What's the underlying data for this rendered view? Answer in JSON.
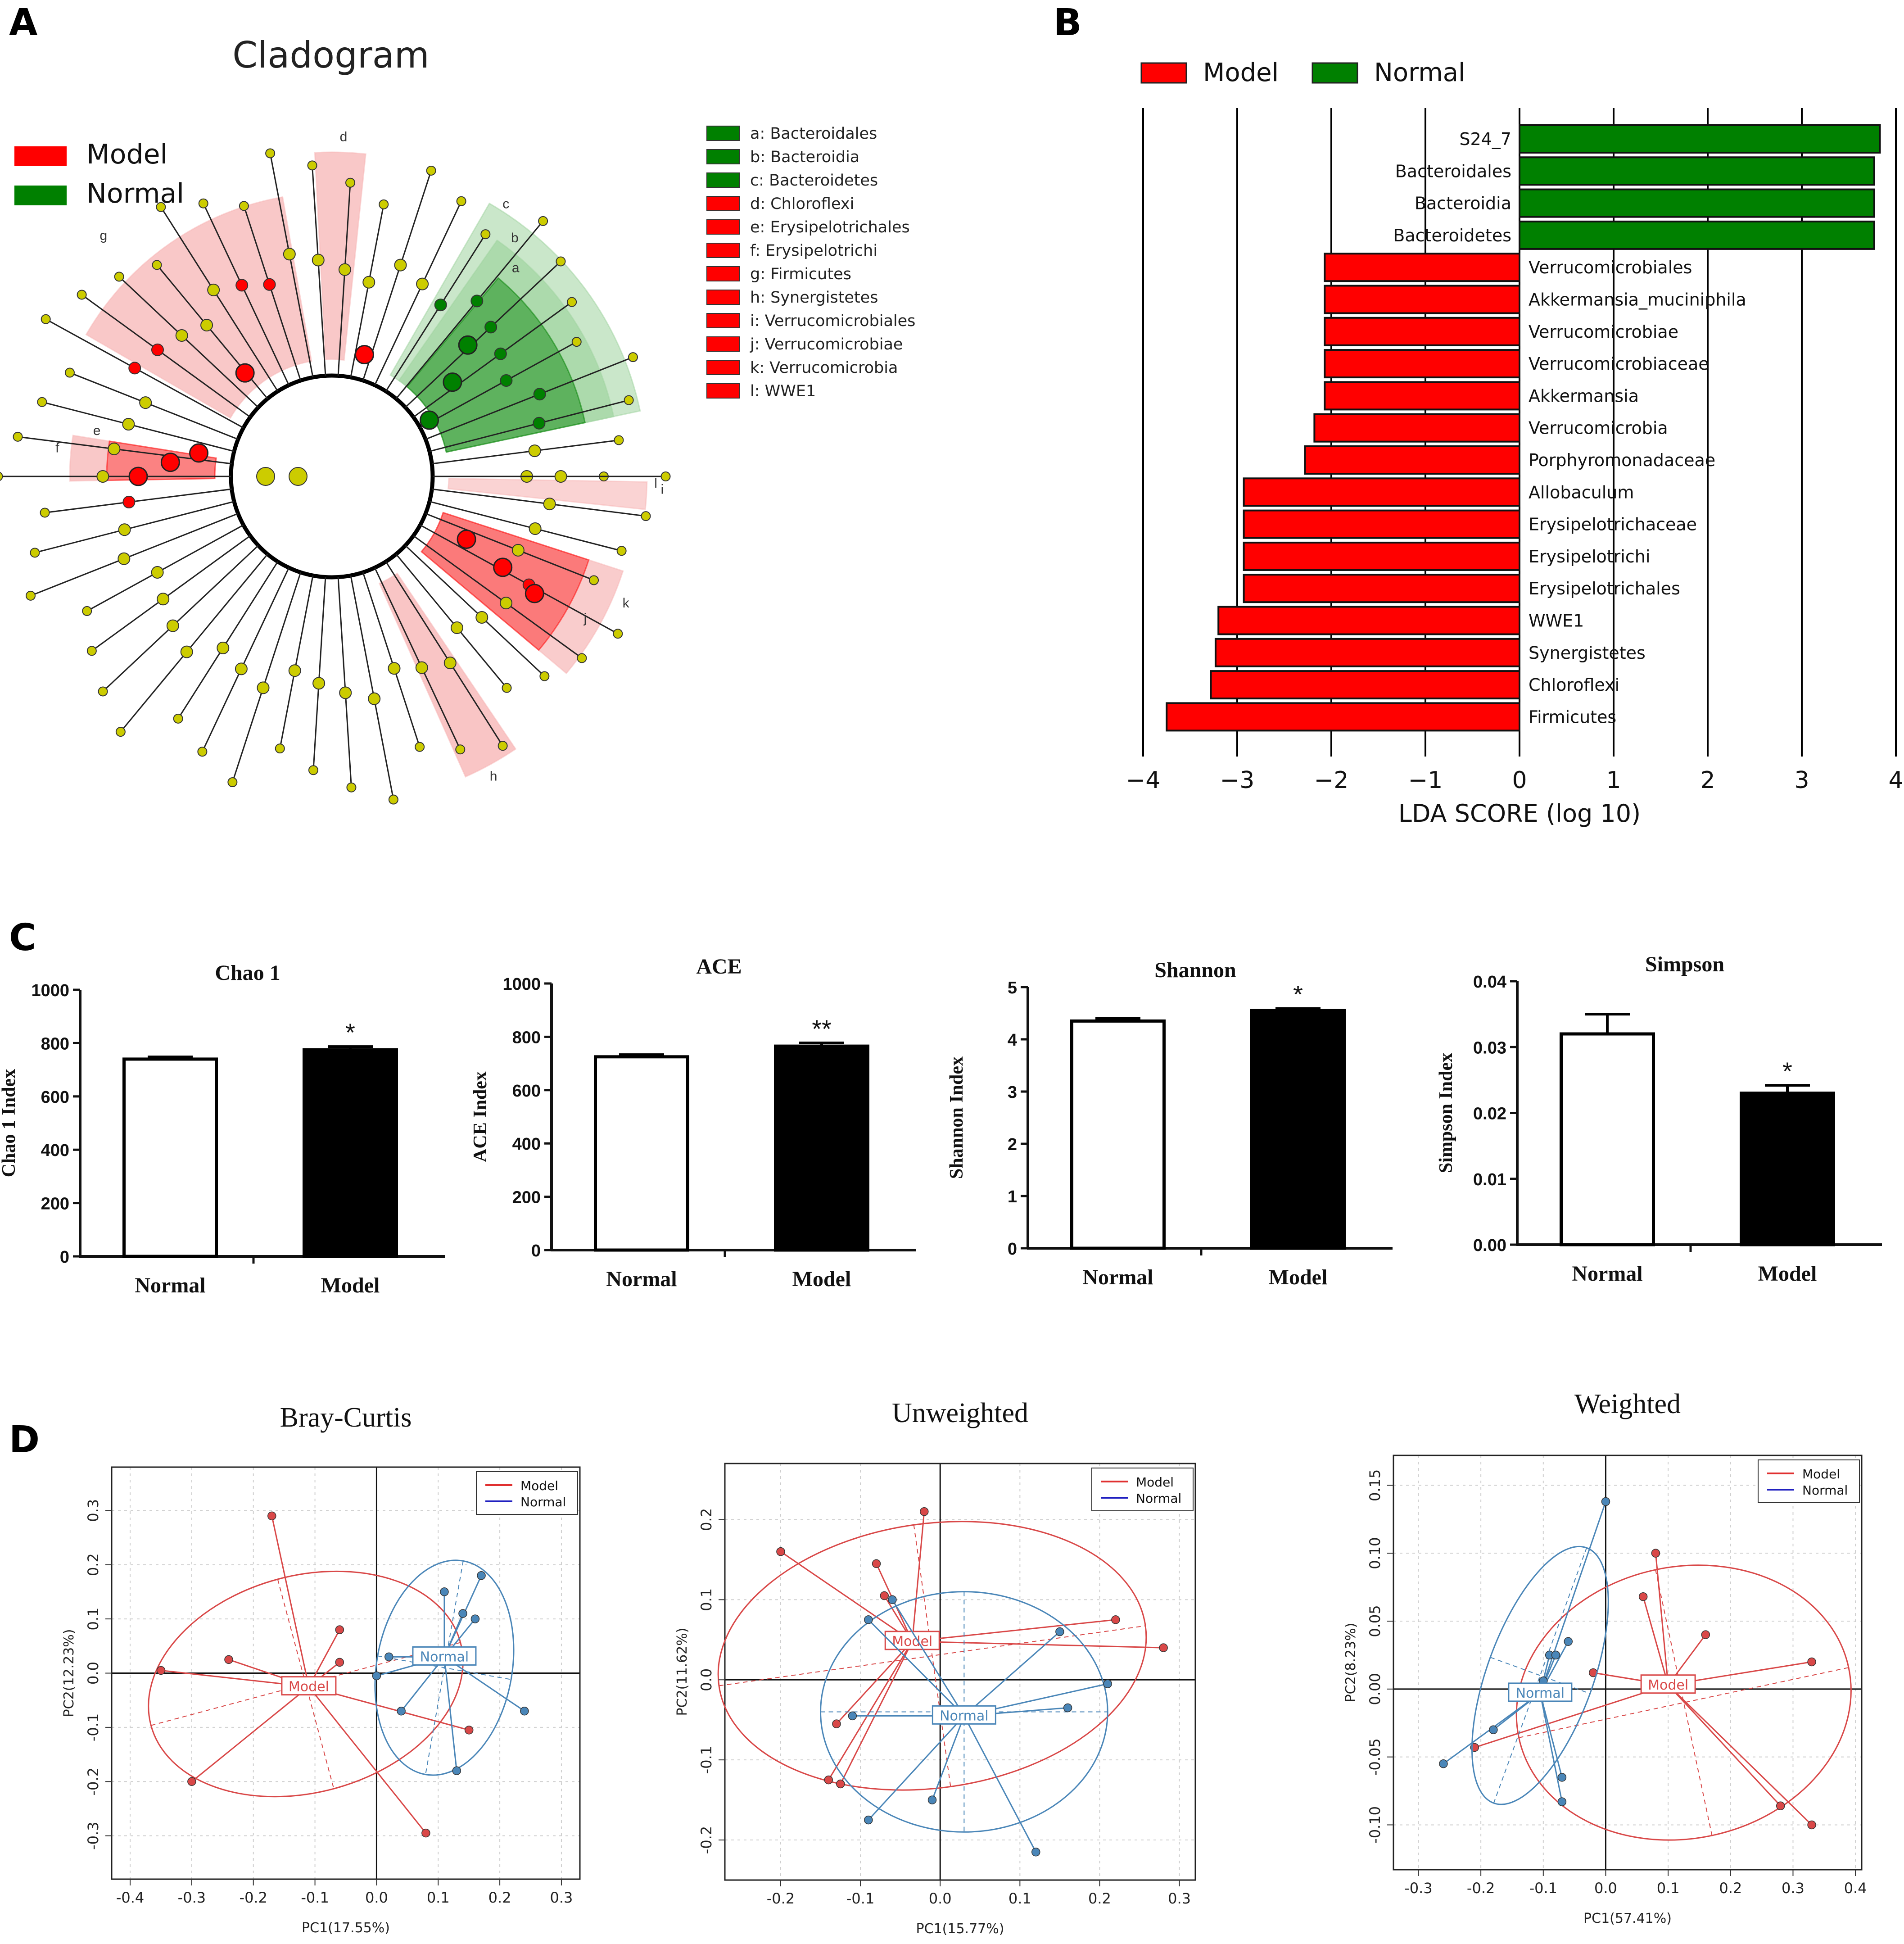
{
  "figure": {
    "background": "#ffffff"
  },
  "colors": {
    "model": "#ff0000",
    "normal": "#008000",
    "model_light": "#f7b6b6",
    "normal_light": "#9fd49f",
    "node": "#cccc00",
    "pcoa_model": "#d94848",
    "pcoa_normal": "#4a86b8"
  },
  "panel_labels": [
    "A",
    "B",
    "C",
    "D"
  ],
  "chart_data": [
    {
      "id": "A",
      "type": "cladogram",
      "title": "Cladogram",
      "legend": [
        {
          "label": "Model",
          "color": "#ff0000"
        },
        {
          "label": "Normal",
          "color": "#008000"
        }
      ],
      "taxa_key": [
        {
          "text": "a: Bacteroidales",
          "group": "Normal"
        },
        {
          "text": "b: Bacteroidia",
          "group": "Normal"
        },
        {
          "text": "c: Bacteroidetes",
          "group": "Normal"
        },
        {
          "text": "d: Chloroflexi",
          "group": "Model"
        },
        {
          "text": "e: Erysipelotrichales",
          "group": "Model"
        },
        {
          "text": "f: Erysipelotrichi",
          "group": "Model"
        },
        {
          "text": "g: Firmicutes",
          "group": "Model"
        },
        {
          "text": "h: Synergistetes",
          "group": "Model"
        },
        {
          "text": "i: Verrucomicrobiales",
          "group": "Model"
        },
        {
          "text": "j: Verrucomicrobiae",
          "group": "Model"
        },
        {
          "text": "k: Verrucomicrobia",
          "group": "Model"
        },
        {
          "text": "l: WWE1",
          "group": "Model"
        }
      ],
      "sector_labels": [
        "d",
        "g",
        "f",
        "e",
        "a",
        "b",
        "c",
        "i",
        "j",
        "k",
        "h",
        "l"
      ]
    },
    {
      "id": "B",
      "type": "bar",
      "orientation": "horizontal",
      "legend": [
        {
          "label": "Model",
          "color": "#ff0000"
        },
        {
          "label": "Normal",
          "color": "#008000"
        }
      ],
      "xlabel": "LDA SCORE (log 10)",
      "xlim": [
        -4,
        4
      ],
      "xticks": [
        "−4",
        "−3",
        "−2",
        "−1",
        "0",
        "1",
        "2",
        "3",
        "4"
      ],
      "bars": [
        {
          "name": "S24_7",
          "value": 3.83,
          "group": "Normal"
        },
        {
          "name": "Bacteroidales",
          "value": 3.77,
          "group": "Normal"
        },
        {
          "name": "Bacteroidia",
          "value": 3.77,
          "group": "Normal"
        },
        {
          "name": "Bacteroidetes",
          "value": 3.77,
          "group": "Normal"
        },
        {
          "name": "Verrucomicrobiales",
          "value": -2.07,
          "group": "Model"
        },
        {
          "name": "Akkermansia_muciniphila",
          "value": -2.07,
          "group": "Model"
        },
        {
          "name": "Verrucomicrobiae",
          "value": -2.07,
          "group": "Model"
        },
        {
          "name": "Verrucomicrobiaceae",
          "value": -2.07,
          "group": "Model"
        },
        {
          "name": "Akkermansia",
          "value": -2.07,
          "group": "Model"
        },
        {
          "name": "Verrucomicrobia",
          "value": -2.18,
          "group": "Model"
        },
        {
          "name": "Porphyromonadaceae",
          "value": -2.28,
          "group": "Model"
        },
        {
          "name": "Allobaculum",
          "value": -2.93,
          "group": "Model"
        },
        {
          "name": "Erysipelotrichaceae",
          "value": -2.93,
          "group": "Model"
        },
        {
          "name": "Erysipelotrichi",
          "value": -2.93,
          "group": "Model"
        },
        {
          "name": "Erysipelotrichales",
          "value": -2.93,
          "group": "Model"
        },
        {
          "name": "WWE1",
          "value": -3.2,
          "group": "Model"
        },
        {
          "name": "Synergistetes",
          "value": -3.23,
          "group": "Model"
        },
        {
          "name": "Chloroflexi",
          "value": -3.28,
          "group": "Model"
        },
        {
          "name": "Firmicutes",
          "value": -3.75,
          "group": "Model"
        }
      ]
    },
    {
      "id": "C1",
      "type": "bar",
      "title": "Chao 1",
      "ylabel": "Chao 1 Index",
      "categories": [
        "Normal",
        "Model"
      ],
      "values": [
        740,
        775
      ],
      "errors": [
        8,
        12
      ],
      "ylim": [
        0,
        1000
      ],
      "yticks": [
        "0",
        "200",
        "400",
        "600",
        "800",
        "1000"
      ],
      "significance": [
        "",
        "*"
      ]
    },
    {
      "id": "C2",
      "type": "bar",
      "title": "ACE",
      "ylabel": "ACE Index",
      "categories": [
        "Normal",
        "Model"
      ],
      "values": [
        725,
        765
      ],
      "errors": [
        8,
        12
      ],
      "ylim": [
        0,
        1000
      ],
      "yticks": [
        "0",
        "200",
        "400",
        "600",
        "800",
        "1000"
      ],
      "significance": [
        "",
        "**"
      ]
    },
    {
      "id": "C3",
      "type": "bar",
      "title": "Shannon",
      "ylabel": "Shannon Index",
      "categories": [
        "Normal",
        "Model"
      ],
      "values": [
        4.35,
        4.55
      ],
      "errors": [
        0.05,
        0.04
      ],
      "ylim": [
        0,
        5
      ],
      "yticks": [
        "0",
        "1",
        "2",
        "3",
        "4",
        "5"
      ],
      "significance": [
        "",
        "*"
      ]
    },
    {
      "id": "C4",
      "type": "bar",
      "title": "Simpson",
      "ylabel": "Simpson Index",
      "categories": [
        "Normal",
        "Model"
      ],
      "values": [
        0.032,
        0.023
      ],
      "errors": [
        0.003,
        0.0012
      ],
      "ylim": [
        0,
        0.04
      ],
      "yticks": [
        "0.00",
        "0.01",
        "0.02",
        "0.03",
        "0.04"
      ],
      "significance": [
        "",
        "*"
      ]
    },
    {
      "id": "D1",
      "type": "scatter",
      "title": "Bray-Curtis",
      "xlabel": "PC1(17.55%)",
      "ylabel": "PC2(12.23%)",
      "xlim": [
        -0.43,
        0.33
      ],
      "ylim": [
        -0.38,
        0.38
      ],
      "xticks": [
        -0.4,
        -0.3,
        -0.2,
        -0.1,
        0.0,
        0.1,
        0.2,
        0.3
      ],
      "yticks": [
        -0.3,
        -0.2,
        -0.1,
        0.0,
        0.1,
        0.2,
        0.3
      ],
      "xtick_labels": [
        "-0.4",
        "-0.3",
        "-0.2",
        "-0.1",
        "0.0",
        "0.1",
        "0.2",
        "0.3"
      ],
      "ytick_labels": [
        "-0.3",
        "-0.2",
        "-0.1",
        "0.0",
        "0.1",
        "0.2",
        "0.3"
      ],
      "legend": [
        "Model",
        "Normal"
      ],
      "series": [
        {
          "name": "Model",
          "centroid": [
            -0.11,
            -0.025
          ],
          "centroid_label": "Model",
          "points": [
            [
              -0.17,
              0.29
            ],
            [
              -0.35,
              0.005
            ],
            [
              -0.24,
              0.025
            ],
            [
              -0.06,
              0.08
            ],
            [
              -0.06,
              0.02
            ],
            [
              -0.3,
              -0.2
            ],
            [
              0.15,
              -0.105
            ],
            [
              0.08,
              -0.295
            ]
          ],
          "ellipse": {
            "cx": -0.115,
            "cy": -0.02,
            "rx": 0.26,
            "ry": 0.2,
            "angle": -15
          }
        },
        {
          "name": "Normal",
          "centroid": [
            0.11,
            0.03
          ],
          "centroid_label": "Normal",
          "points": [
            [
              0.17,
              0.18
            ],
            [
              0.11,
              0.15
            ],
            [
              0.14,
              0.11
            ],
            [
              0.16,
              0.1
            ],
            [
              0.02,
              0.03
            ],
            [
              0.0,
              -0.005
            ],
            [
              0.04,
              -0.07
            ],
            [
              0.24,
              -0.07
            ],
            [
              0.13,
              -0.18
            ]
          ],
          "ellipse": {
            "cx": 0.11,
            "cy": 0.01,
            "rx": 0.11,
            "ry": 0.2,
            "angle": 10
          }
        }
      ]
    },
    {
      "id": "D2",
      "type": "scatter",
      "title": "Unweighted",
      "xlabel": "PC1(15.77%)",
      "ylabel": "PC2(11.62%)",
      "xlim": [
        -0.27,
        0.32
      ],
      "ylim": [
        -0.25,
        0.27
      ],
      "xticks": [
        -0.2,
        -0.1,
        0.0,
        0.1,
        0.2,
        0.3
      ],
      "yticks": [
        -0.2,
        -0.1,
        0.0,
        0.1,
        0.2
      ],
      "xtick_labels": [
        "-0.2",
        "-0.1",
        "0.0",
        "0.1",
        "0.2",
        "0.3"
      ],
      "ytick_labels": [
        "-0.2",
        "-0.1",
        "0.0",
        "0.1",
        "0.2"
      ],
      "legend": [
        "Model",
        "Normal"
      ],
      "series": [
        {
          "name": "Model",
          "centroid": [
            -0.035,
            0.048
          ],
          "centroid_label": "Model",
          "points": [
            [
              -0.02,
              0.21
            ],
            [
              -0.2,
              0.16
            ],
            [
              -0.08,
              0.145
            ],
            [
              -0.07,
              0.105
            ],
            [
              0.22,
              0.075
            ],
            [
              0.28,
              0.04
            ],
            [
              -0.13,
              -0.055
            ],
            [
              -0.14,
              -0.125
            ],
            [
              -0.125,
              -0.13
            ]
          ],
          "ellipse": {
            "cx": -0.01,
            "cy": 0.03,
            "rx": 0.27,
            "ry": 0.165,
            "angle": -8
          }
        },
        {
          "name": "Normal",
          "centroid": [
            0.03,
            -0.045
          ],
          "centroid_label": "Normal",
          "points": [
            [
              -0.06,
              0.1
            ],
            [
              -0.09,
              0.075
            ],
            [
              0.15,
              0.06
            ],
            [
              -0.11,
              -0.045
            ],
            [
              0.21,
              -0.005
            ],
            [
              0.16,
              -0.035
            ],
            [
              -0.01,
              -0.15
            ],
            [
              -0.09,
              -0.175
            ],
            [
              0.12,
              -0.215
            ]
          ],
          "ellipse": {
            "cx": 0.03,
            "cy": -0.04,
            "rx": 0.18,
            "ry": 0.15,
            "angle": 0
          }
        }
      ]
    },
    {
      "id": "D3",
      "type": "scatter",
      "title": "Weighted",
      "xlabel": "PC1(57.41%)",
      "ylabel": "PC2(8.23%)",
      "xlim": [
        -0.34,
        0.41
      ],
      "ylim": [
        -0.133,
        0.172
      ],
      "xticks": [
        -0.3,
        -0.2,
        -0.1,
        0.0,
        0.1,
        0.2,
        0.3,
        0.4
      ],
      "yticks": [
        -0.1,
        -0.05,
        0.0,
        0.05,
        0.1,
        0.15
      ],
      "xtick_labels": [
        "-0.3",
        "-0.2",
        "-0.1",
        "0.0",
        "0.1",
        "0.2",
        "0.3",
        "0.4"
      ],
      "ytick_labels": [
        "-0.10",
        "-0.05",
        "0.00",
        "0.05",
        "0.10",
        "0.15"
      ],
      "legend": [
        "Model",
        "Normal"
      ],
      "series": [
        {
          "name": "Model",
          "centroid": [
            0.1,
            0.003
          ],
          "centroid_label": "Model",
          "points": [
            [
              0.08,
              0.1
            ],
            [
              0.06,
              0.068
            ],
            [
              0.16,
              0.04
            ],
            [
              0.33,
              0.02
            ],
            [
              -0.02,
              0.012
            ],
            [
              -0.21,
              -0.043
            ],
            [
              0.28,
              -0.086
            ],
            [
              0.33,
              -0.1
            ]
          ],
          "ellipse": {
            "cx": 0.125,
            "cy": -0.01,
            "rx": 0.27,
            "ry": 0.1,
            "angle": -12
          }
        },
        {
          "name": "Normal",
          "centroid": [
            -0.105,
            -0.003
          ],
          "centroid_label": "Normal",
          "points": [
            [
              0.0,
              0.138
            ],
            [
              -0.06,
              0.035
            ],
            [
              -0.09,
              0.025
            ],
            [
              -0.08,
              0.025
            ],
            [
              -0.1,
              0.006
            ],
            [
              -0.18,
              -0.03
            ],
            [
              -0.26,
              -0.055
            ],
            [
              -0.07,
              -0.065
            ],
            [
              -0.07,
              -0.083
            ]
          ],
          "ellipse": {
            "cx": -0.105,
            "cy": 0.01,
            "rx": 0.085,
            "ry": 0.1,
            "angle": 20
          }
        }
      ]
    }
  ]
}
